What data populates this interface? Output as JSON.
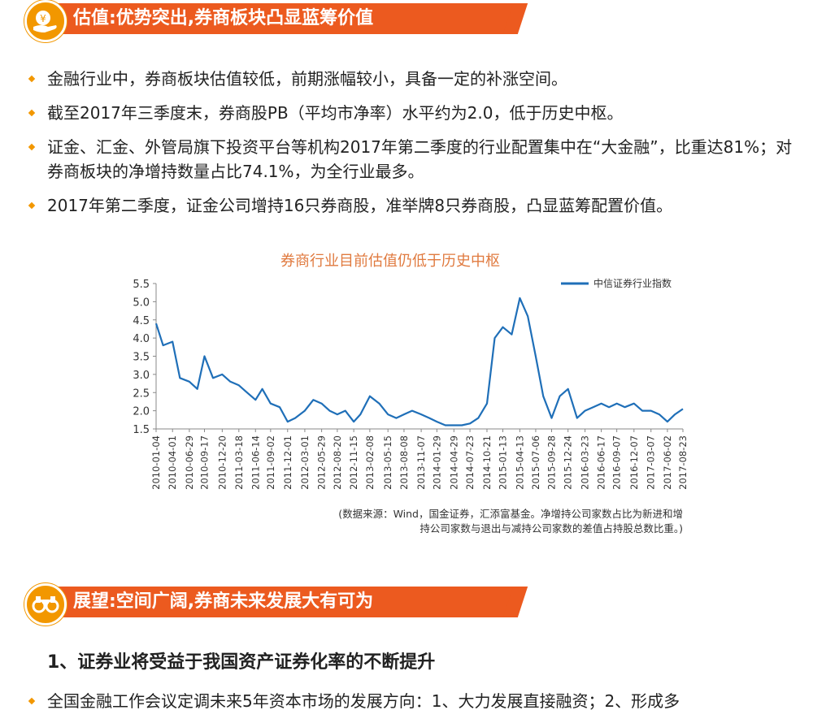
{
  "section1": {
    "title": "估值:优势突出,券商板块凸显蓝筹价值"
  },
  "bullets": [
    "金融行业中，券商板块估值较低，前期涨幅较小，具备一定的补涨空间。",
    "截至2017年三季度末，券商股PB（平均市净率）水平约为2.0，低于历史中枢。",
    "证金、汇金、外管局旗下投资平台等机构2017年第二季度的行业配置集中在“大金融”，比重达81%；对券商板块的净增持数量占比74.1%，为全行业最多。",
    "2017年第二季度，证金公司增持16只券商股，准举牌8只券商股，凸显蓝筹配置价值。"
  ],
  "chart_data": {
    "type": "line",
    "title": "券商行业目前估值仍低于历史中枢",
    "legend": "top-right",
    "ylim": [
      1.5,
      5.5
    ],
    "y_ticks": [
      "1.5",
      "2.0",
      "2.5",
      "3.0",
      "3.5",
      "4.0",
      "4.5",
      "5.0",
      "5.5"
    ],
    "x_ticks": [
      "2010-01-04",
      "2010-04-01",
      "2010-06-29",
      "2010-09-17",
      "2010-12-20",
      "2011-03-18",
      "2011-06-14",
      "2011-09-02",
      "2011-12-01",
      "2012-03-01",
      "2012-05-29",
      "2012-08-20",
      "2012-11-15",
      "2013-02-08",
      "2013-05-15",
      "2013-08-08",
      "2013-11-07",
      "2014-01-29",
      "2014-04-29",
      "2014-07-23",
      "2014-10-21",
      "2015-01-13",
      "2015-04-13",
      "2015-07-06",
      "2015-09-28",
      "2015-12-24",
      "2016-03-23",
      "2016-06-17",
      "2016-09-07",
      "2016-12-07",
      "2017-03-07",
      "2017-06-02",
      "2017-08-23"
    ],
    "series": [
      {
        "name": "中信证券行业指数",
        "color": "#1f6fb8",
        "x": [
          "2010-01-04",
          "2010-02-10",
          "2010-04-01",
          "2010-05-10",
          "2010-06-29",
          "2010-08-10",
          "2010-09-17",
          "2010-11-01",
          "2010-12-20",
          "2011-02-01",
          "2011-03-18",
          "2011-05-01",
          "2011-06-14",
          "2011-07-20",
          "2011-09-02",
          "2011-10-20",
          "2011-12-01",
          "2012-01-10",
          "2012-03-01",
          "2012-04-15",
          "2012-05-29",
          "2012-07-10",
          "2012-08-20",
          "2012-10-01",
          "2012-11-15",
          "2012-12-20",
          "2013-02-08",
          "2013-03-30",
          "2013-05-15",
          "2013-06-28",
          "2013-08-08",
          "2013-09-20",
          "2013-11-07",
          "2013-12-20",
          "2014-01-29",
          "2014-03-15",
          "2014-04-29",
          "2014-06-10",
          "2014-07-23",
          "2014-09-05",
          "2014-10-21",
          "2014-12-01",
          "2015-01-13",
          "2015-03-01",
          "2015-04-13",
          "2015-05-25",
          "2015-07-06",
          "2015-08-15",
          "2015-09-28",
          "2015-11-10",
          "2015-12-24",
          "2016-02-10",
          "2016-03-23",
          "2016-05-05",
          "2016-06-17",
          "2016-07-28",
          "2016-09-07",
          "2016-10-20",
          "2016-12-07",
          "2017-01-20",
          "2017-03-07",
          "2017-04-20",
          "2017-06-02",
          "2017-07-12",
          "2017-08-23"
        ],
        "values": [
          4.4,
          3.8,
          3.9,
          2.9,
          2.8,
          2.6,
          3.5,
          2.9,
          3.0,
          2.8,
          2.7,
          2.5,
          2.3,
          2.6,
          2.2,
          2.1,
          1.7,
          1.8,
          2.0,
          2.3,
          2.2,
          2.0,
          1.9,
          2.0,
          1.7,
          1.9,
          2.4,
          2.2,
          1.9,
          1.8,
          1.9,
          2.0,
          1.9,
          1.8,
          1.7,
          1.6,
          1.6,
          1.6,
          1.65,
          1.8,
          2.2,
          4.0,
          4.3,
          4.1,
          5.1,
          4.6,
          3.5,
          2.4,
          1.8,
          2.4,
          2.6,
          1.8,
          2.0,
          2.1,
          2.2,
          2.1,
          2.2,
          2.1,
          2.2,
          2.0,
          2.0,
          1.9,
          1.7,
          1.9,
          2.05
        ]
      }
    ],
    "source_note_lines": [
      "(数据来源：Wind，国金证券，汇添富基金。净增持公司家数占比为新进和增",
      "持公司家数与退出与减持公司家数的差值占持股总数比重。)"
    ]
  },
  "section2": {
    "title": "展望:空间广阔,券商未来发展大有可为"
  },
  "subheading": "1、证券业将受益于我国资产证券化率的不断提升",
  "bullet_last": "全国金融工作会议定调未来5年资本市场的发展方向：1、大力发展直接融资；2、形成多",
  "colors": {
    "accent": "#ec5a1f",
    "badge": "#f29700",
    "line": "#1f6fb8",
    "chart_title": "#e07a3f"
  }
}
